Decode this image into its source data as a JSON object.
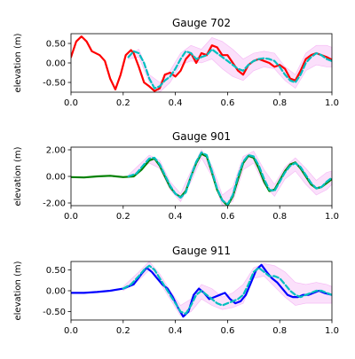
{
  "chart_data": [
    {
      "type": "line",
      "title": "Gauge 702",
      "ylabel": "elevation (m)",
      "xlim": [
        0,
        1
      ],
      "ylim": [
        -0.75,
        0.75
      ],
      "x_ticks": [
        "0.0",
        "0.2",
        "0.4",
        "0.6",
        "0.8",
        "1.0"
      ],
      "y_ticks": [
        0.5,
        0.0,
        -0.5
      ],
      "y_tick_labels": [
        "0.50",
        "0.00",
        "-0.50"
      ],
      "colors": {
        "observed": "#ff0000",
        "predicted": "#00bfbf",
        "band": "#ee82ee"
      },
      "series": [
        {
          "role": "observed",
          "x": [
            0.0,
            0.02,
            0.04,
            0.06,
            0.08,
            0.11,
            0.13,
            0.15,
            0.17,
            0.19,
            0.21,
            0.23,
            0.24,
            0.26,
            0.28,
            0.3,
            0.32,
            0.34,
            0.36,
            0.38,
            0.4,
            0.42,
            0.44,
            0.46,
            0.48,
            0.5,
            0.52,
            0.54,
            0.56,
            0.58,
            0.6,
            0.62,
            0.64,
            0.66,
            0.68,
            0.7,
            0.72,
            0.74,
            0.76,
            0.78,
            0.8,
            0.82,
            0.84,
            0.86,
            0.88,
            0.9,
            0.92,
            0.94,
            0.96,
            0.98,
            1.0
          ],
          "y": [
            0.15,
            0.55,
            0.68,
            0.55,
            0.3,
            0.2,
            0.05,
            -0.4,
            -0.68,
            -0.3,
            0.2,
            0.33,
            0.25,
            -0.1,
            -0.5,
            -0.6,
            -0.72,
            -0.65,
            -0.3,
            -0.25,
            -0.35,
            -0.2,
            0.1,
            0.25,
            0.0,
            0.25,
            0.2,
            0.45,
            0.4,
            0.2,
            0.2,
            0.0,
            -0.2,
            -0.3,
            -0.05,
            0.05,
            0.1,
            0.05,
            0.0,
            -0.1,
            -0.05,
            -0.15,
            -0.4,
            -0.45,
            -0.2,
            0.1,
            0.2,
            0.25,
            0.2,
            0.15,
            0.08
          ]
        },
        {
          "role": "predicted",
          "x": [
            0.22,
            0.24,
            0.26,
            0.28,
            0.3,
            0.32,
            0.34,
            0.36,
            0.38,
            0.4,
            0.42,
            0.44,
            0.46,
            0.48,
            0.5,
            0.52,
            0.54,
            0.56,
            0.58,
            0.6,
            0.62,
            0.64,
            0.66,
            0.68,
            0.7,
            0.72,
            0.74,
            0.76,
            0.78,
            0.8,
            0.82,
            0.84,
            0.86,
            0.88,
            0.9,
            0.92,
            0.94,
            0.96,
            0.98,
            1.0
          ],
          "y": [
            0.15,
            0.3,
            0.25,
            0.0,
            -0.4,
            -0.65,
            -0.6,
            -0.45,
            -0.35,
            -0.15,
            0.1,
            0.3,
            0.25,
            0.1,
            0.15,
            0.2,
            0.35,
            0.25,
            0.15,
            0.05,
            -0.05,
            -0.15,
            -0.2,
            -0.05,
            0.05,
            0.1,
            0.12,
            0.1,
            0.05,
            -0.1,
            -0.3,
            -0.45,
            -0.5,
            -0.3,
            0.0,
            0.15,
            0.25,
            0.2,
            0.1,
            0.05
          ]
        }
      ],
      "band": {
        "x": [
          0.22,
          0.26,
          0.3,
          0.34,
          0.38,
          0.42,
          0.46,
          0.5,
          0.54,
          0.58,
          0.62,
          0.66,
          0.7,
          0.74,
          0.78,
          0.82,
          0.86,
          0.9,
          0.94,
          0.98,
          1.0
        ],
        "lower": [
          0.1,
          0.15,
          -0.5,
          -0.75,
          -0.5,
          -0.05,
          0.05,
          0.0,
          0.1,
          -0.15,
          -0.35,
          -0.45,
          -0.2,
          -0.1,
          -0.15,
          -0.45,
          -0.65,
          -0.2,
          -0.05,
          -0.1,
          -0.1
        ],
        "upper": [
          0.2,
          0.35,
          -0.3,
          -0.5,
          -0.2,
          0.25,
          0.45,
          0.35,
          0.65,
          0.55,
          0.35,
          0.1,
          0.25,
          0.3,
          0.25,
          -0.1,
          -0.3,
          0.25,
          0.45,
          0.45,
          0.4
        ]
      }
    },
    {
      "type": "line",
      "title": "Gauge 901",
      "ylabel": "elevation (m)",
      "xlim": [
        0,
        1
      ],
      "ylim": [
        -2.2,
        2.2
      ],
      "x_ticks": [
        "0.0",
        "0.2",
        "0.4",
        "0.6",
        "0.8",
        "1.0"
      ],
      "y_ticks": [
        2.0,
        0.0,
        -2.0
      ],
      "y_tick_labels": [
        "2.00",
        "0.00",
        "-2.00"
      ],
      "colors": {
        "observed": "#008000",
        "predicted": "#00bfbf",
        "band": "#ee82ee"
      },
      "series": [
        {
          "role": "observed",
          "x": [
            0.0,
            0.05,
            0.1,
            0.15,
            0.2,
            0.24,
            0.27,
            0.3,
            0.32,
            0.34,
            0.36,
            0.38,
            0.4,
            0.42,
            0.44,
            0.46,
            0.48,
            0.5,
            0.52,
            0.54,
            0.56,
            0.58,
            0.6,
            0.62,
            0.64,
            0.66,
            0.68,
            0.7,
            0.72,
            0.74,
            0.76,
            0.78,
            0.8,
            0.82,
            0.84,
            0.86,
            0.88,
            0.9,
            0.92,
            0.94,
            0.96,
            0.98,
            1.0
          ],
          "y": [
            -0.05,
            -0.08,
            0.0,
            0.05,
            -0.05,
            0.0,
            0.5,
            1.2,
            1.35,
            0.8,
            0.0,
            -0.8,
            -1.3,
            -1.55,
            -1.1,
            0.0,
            1.0,
            1.7,
            1.5,
            0.3,
            -1.0,
            -1.8,
            -2.2,
            -1.5,
            -0.2,
            1.0,
            1.55,
            1.4,
            0.6,
            -0.4,
            -1.1,
            -1.0,
            -0.3,
            0.4,
            0.9,
            1.05,
            0.6,
            0.0,
            -0.6,
            -0.9,
            -0.8,
            -0.5,
            -0.2
          ]
        },
        {
          "role": "predicted",
          "x": [
            0.22,
            0.25,
            0.28,
            0.3,
            0.32,
            0.34,
            0.36,
            0.38,
            0.4,
            0.42,
            0.44,
            0.46,
            0.48,
            0.5,
            0.52,
            0.54,
            0.56,
            0.58,
            0.6,
            0.62,
            0.64,
            0.66,
            0.68,
            0.7,
            0.72,
            0.74,
            0.76,
            0.78,
            0.8,
            0.82,
            0.84,
            0.86,
            0.88,
            0.9,
            0.92,
            0.94,
            0.96,
            0.98,
            1.0
          ],
          "y": [
            0.0,
            0.2,
            0.9,
            1.35,
            1.4,
            0.9,
            0.1,
            -0.7,
            -1.3,
            -1.6,
            -1.2,
            0.0,
            1.1,
            1.8,
            1.6,
            0.4,
            -0.9,
            -1.8,
            -2.1,
            -1.4,
            0.0,
            1.1,
            1.6,
            1.5,
            0.8,
            -0.2,
            -1.0,
            -1.1,
            -0.4,
            0.3,
            0.8,
            1.0,
            0.7,
            0.1,
            -0.5,
            -0.9,
            -0.8,
            -0.4,
            -0.1
          ]
        }
      ],
      "band": {
        "x": [
          0.22,
          0.3,
          0.34,
          0.38,
          0.42,
          0.46,
          0.5,
          0.54,
          0.58,
          0.62,
          0.66,
          0.7,
          0.74,
          0.78,
          0.82,
          0.86,
          0.9,
          0.94,
          0.98,
          1.0
        ],
        "lower": [
          -0.1,
          1.0,
          0.6,
          -1.0,
          -1.9,
          -0.4,
          1.4,
          0.0,
          -2.2,
          -1.9,
          0.5,
          1.0,
          -0.6,
          -1.5,
          -0.2,
          0.4,
          -0.6,
          -1.4,
          -1.0,
          -0.6
        ],
        "upper": [
          0.1,
          1.6,
          1.2,
          -0.4,
          -1.3,
          0.4,
          2.0,
          0.8,
          -1.4,
          -0.8,
          1.5,
          1.9,
          0.5,
          -0.6,
          0.7,
          1.4,
          0.6,
          -0.3,
          0.3,
          0.4
        ]
      }
    },
    {
      "type": "line",
      "title": "Gauge 911",
      "ylabel": "elevation (m)",
      "xlim": [
        0,
        1
      ],
      "ylim": [
        -0.7,
        0.7
      ],
      "x_ticks": [
        "0.0",
        "0.2",
        "0.4",
        "0.6",
        "0.8",
        "1.0"
      ],
      "y_ticks": [
        0.5,
        0.0,
        -0.5
      ],
      "y_tick_labels": [
        "0.50",
        "0.00",
        "-0.50"
      ],
      "colors": {
        "observed": "#0000ff",
        "predicted": "#00bfbf",
        "band": "#ee82ee"
      },
      "series": [
        {
          "role": "observed",
          "x": [
            0.0,
            0.05,
            0.1,
            0.15,
            0.2,
            0.24,
            0.27,
            0.29,
            0.31,
            0.33,
            0.35,
            0.37,
            0.39,
            0.41,
            0.43,
            0.45,
            0.47,
            0.49,
            0.51,
            0.53,
            0.55,
            0.57,
            0.59,
            0.61,
            0.63,
            0.65,
            0.67,
            0.69,
            0.71,
            0.73,
            0.75,
            0.77,
            0.79,
            0.81,
            0.83,
            0.85,
            0.87,
            0.89,
            0.91,
            0.93,
            0.95,
            0.97,
            1.0
          ],
          "y": [
            -0.05,
            -0.05,
            -0.03,
            0.0,
            0.05,
            0.15,
            0.4,
            0.55,
            0.45,
            0.3,
            0.15,
            0.05,
            -0.15,
            -0.4,
            -0.62,
            -0.5,
            -0.1,
            0.05,
            -0.05,
            -0.2,
            -0.15,
            -0.1,
            -0.05,
            -0.2,
            -0.3,
            -0.25,
            -0.1,
            0.2,
            0.5,
            0.62,
            0.45,
            0.3,
            0.2,
            0.05,
            -0.1,
            -0.15,
            -0.15,
            -0.1,
            -0.1,
            -0.05,
            0.0,
            -0.05,
            -0.1
          ]
        },
        {
          "role": "predicted",
          "x": [
            0.2,
            0.23,
            0.26,
            0.28,
            0.3,
            0.32,
            0.34,
            0.36,
            0.38,
            0.4,
            0.42,
            0.44,
            0.46,
            0.48,
            0.5,
            0.52,
            0.54,
            0.56,
            0.58,
            0.6,
            0.62,
            0.64,
            0.66,
            0.68,
            0.7,
            0.72,
            0.74,
            0.76,
            0.78,
            0.8,
            0.82,
            0.84,
            0.86,
            0.88,
            0.9,
            0.92,
            0.94,
            0.96,
            0.98,
            1.0
          ],
          "y": [
            0.05,
            0.15,
            0.35,
            0.5,
            0.6,
            0.5,
            0.3,
            0.1,
            -0.1,
            -0.3,
            -0.5,
            -0.55,
            -0.35,
            -0.1,
            0.0,
            -0.1,
            -0.2,
            -0.3,
            -0.35,
            -0.3,
            -0.25,
            -0.2,
            -0.1,
            0.15,
            0.45,
            0.55,
            0.45,
            0.35,
            0.35,
            0.3,
            0.15,
            0.0,
            -0.1,
            -0.15,
            -0.1,
            -0.05,
            0.0,
            0.0,
            -0.05,
            -0.1
          ]
        }
      ],
      "band": {
        "x": [
          0.2,
          0.26,
          0.3,
          0.34,
          0.38,
          0.42,
          0.46,
          0.5,
          0.54,
          0.58,
          0.62,
          0.66,
          0.7,
          0.74,
          0.78,
          0.82,
          0.86,
          0.9,
          0.94,
          0.98,
          1.0
        ],
        "lower": [
          0.0,
          0.25,
          0.5,
          0.2,
          -0.2,
          -0.6,
          -0.5,
          -0.2,
          -0.35,
          -0.45,
          -0.4,
          -0.3,
          0.3,
          0.35,
          0.1,
          -0.15,
          -0.35,
          -0.3,
          -0.3,
          -0.3,
          -0.3
        ],
        "upper": [
          0.1,
          0.45,
          0.7,
          0.4,
          0.0,
          -0.35,
          -0.2,
          0.15,
          0.05,
          -0.15,
          -0.05,
          0.15,
          0.55,
          0.65,
          0.6,
          0.45,
          0.2,
          0.15,
          0.2,
          0.15,
          0.1
        ]
      }
    }
  ]
}
